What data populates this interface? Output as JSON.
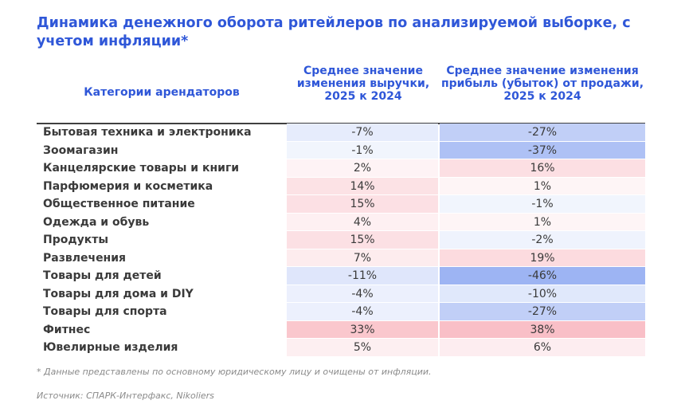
{
  "title": "Динамика денежного оборота ритейлеров по анализируемой выборке, с учетом инфляции*",
  "headers": {
    "category": "Категории арендаторов",
    "revenue": "Среднее значение изменения выручки, 2025 к 2024",
    "profit": "Среднее значение изменения прибыль (убыток) от продажи, 2025 к 2024"
  },
  "colors": {
    "title": "#2f57d8",
    "positive": "#f8b4bd",
    "negative": "#9db4f3"
  },
  "chart_data": {
    "type": "table",
    "columns": [
      "Категории арендаторов",
      "Среднее значение изменения выручки, 2025 к 2024",
      "Среднее значение изменения прибыль (убыток) от продажи, 2025 к 2024"
    ],
    "rows": [
      {
        "category": "Бытовая техника и электроника",
        "revenue": "-7%",
        "profit": "-27%"
      },
      {
        "category": "Зоомагазин",
        "revenue": "-1%",
        "profit": "-37%"
      },
      {
        "category": "Канцелярские товары и книги",
        "revenue": "2%",
        "profit": "16%"
      },
      {
        "category": "Парфюмерия и косметика",
        "revenue": "14%",
        "profit": "1%"
      },
      {
        "category": "Общественное питание",
        "revenue": "15%",
        "profit": "-1%"
      },
      {
        "category": "Одежда и обувь",
        "revenue": "4%",
        "profit": "1%"
      },
      {
        "category": "Продукты",
        "revenue": "15%",
        "profit": "-2%"
      },
      {
        "category": "Развлечения",
        "revenue": "7%",
        "profit": "19%"
      },
      {
        "category": "Товары для детей",
        "revenue": "-11%",
        "profit": "-46%"
      },
      {
        "category": "Товары для дома и DIY",
        "revenue": "-4%",
        "profit": "-10%"
      },
      {
        "category": "Товары для спорта",
        "revenue": "-4%",
        "profit": "-27%"
      },
      {
        "category": "Фитнес",
        "revenue": "33%",
        "profit": "38%"
      },
      {
        "category": "Ювелирные изделия",
        "revenue": "5%",
        "profit": "6%"
      }
    ]
  },
  "footnote": "* Данные представлены по основному юридическому лицу и очищены от инфляции.",
  "source": "Источник: СПАРК-Интерфакс, Nikoliers"
}
